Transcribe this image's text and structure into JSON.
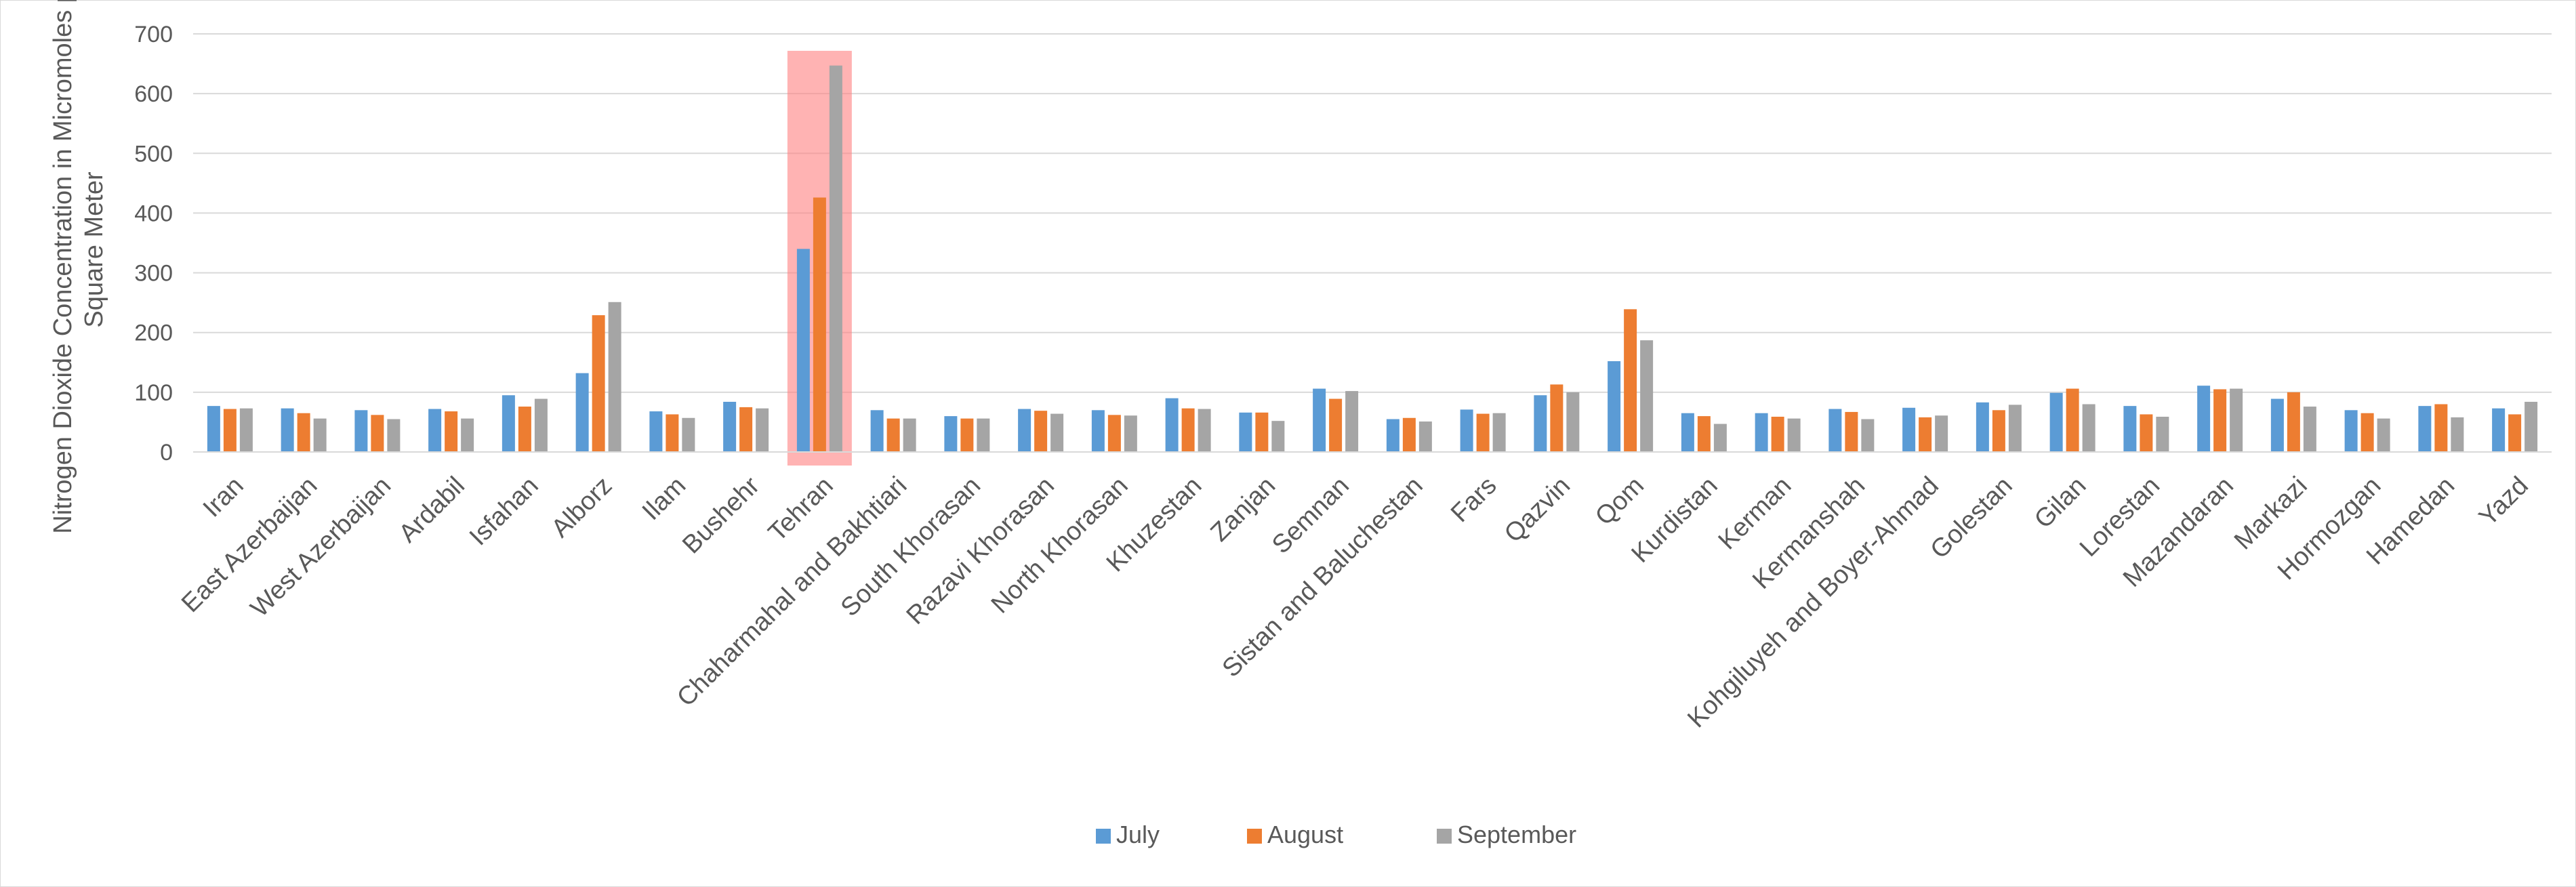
{
  "chart_data": {
    "type": "bar",
    "title": "",
    "xlabel": "",
    "ylabel": "Nitrogen Dioxide Concentration in Micromoles per Square Meter",
    "ylabel_lines": [
      "Nitrogen Dioxide Concentration in Micromoles per",
      "Square Meter"
    ],
    "ylim": [
      0,
      700
    ],
    "yticks": [
      0,
      100,
      200,
      300,
      400,
      500,
      600,
      700
    ],
    "grid": true,
    "legend": "bottom",
    "highlight": {
      "category": "Tehran",
      "color": "#ff8080",
      "opacity": 0.6
    },
    "categories": [
      "Iran",
      "East Azerbaijan",
      "West Azerbaijan",
      "Ardabil",
      "Isfahan",
      "Alborz",
      "Ilam",
      "Bushehr",
      "Tehran",
      "Chaharmahal and Bakhtiari",
      "South Khorasan",
      "Razavi Khorasan",
      "North Khorasan",
      "Khuzestan",
      "Zanjan",
      "Semnan",
      "Sistan and Baluchestan",
      "Fars",
      "Qazvin",
      "Qom",
      "Kurdistan",
      "Kerman",
      "Kermanshah",
      "Kohgiluyeh and Boyer-Ahmad",
      "Golestan",
      "Gilan",
      "Lorestan",
      "Mazandaran",
      "Markazi",
      "Hormozgan",
      "Hamedan",
      "Yazd"
    ],
    "series": [
      {
        "name": "July",
        "color": "#5b9bd5",
        "values": [
          77,
          73,
          70,
          72,
          95,
          132,
          68,
          84,
          340,
          70,
          60,
          72,
          70,
          90,
          66,
          106,
          55,
          71,
          95,
          152,
          65,
          65,
          72,
          74,
          83,
          99,
          77,
          111,
          89,
          70,
          77,
          73
        ]
      },
      {
        "name": "August",
        "color": "#ed7d31",
        "values": [
          72,
          65,
          62,
          68,
          76,
          229,
          63,
          75,
          426,
          56,
          56,
          69,
          62,
          73,
          66,
          89,
          57,
          64,
          113,
          239,
          60,
          59,
          67,
          58,
          70,
          106,
          63,
          105,
          100,
          65,
          80,
          63
        ]
      },
      {
        "name": "September",
        "color": "#a5a5a5",
        "values": [
          73,
          56,
          55,
          56,
          89,
          251,
          57,
          73,
          647,
          56,
          56,
          64,
          61,
          72,
          52,
          102,
          51,
          65,
          100,
          187,
          47,
          56,
          55,
          61,
          79,
          80,
          59,
          106,
          76,
          56,
          58,
          84
        ]
      }
    ]
  }
}
